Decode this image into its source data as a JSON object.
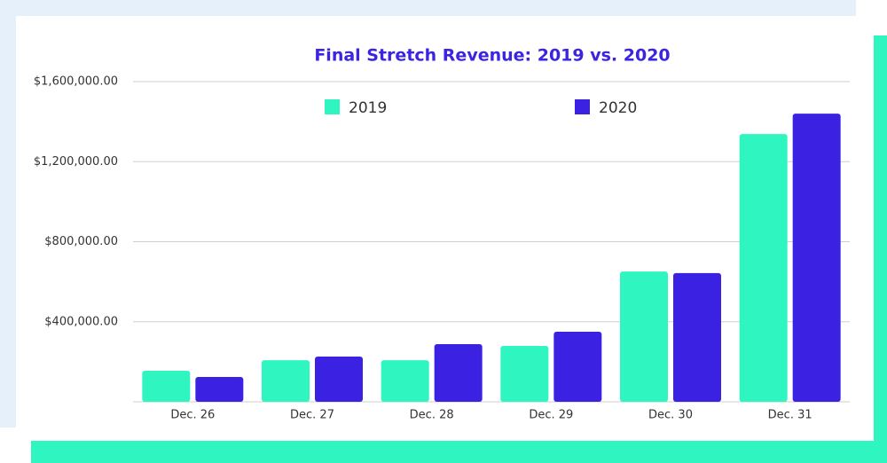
{
  "chart_data": {
    "type": "bar",
    "title": "Final Stretch Revenue: 2019 vs. 2020",
    "categories": [
      "Dec. 26",
      "Dec. 27",
      "Dec. 28",
      "Dec. 29",
      "Dec. 30",
      "Dec. 31"
    ],
    "series": [
      {
        "name": "2019",
        "color": "#2ff5c0",
        "values": [
          155000,
          208000,
          208000,
          279000,
          651000,
          1338000
        ]
      },
      {
        "name": "2020",
        "color": "#3b22e2",
        "values": [
          124000,
          226000,
          288000,
          350000,
          643000,
          1440000
        ]
      }
    ],
    "ylim": [
      0,
      1600000
    ],
    "yticks": [
      {
        "value": 400000,
        "label": "$400,000.00"
      },
      {
        "value": 800000,
        "label": "$800,000.00"
      },
      {
        "value": 1200000,
        "label": "$1,200,000.00"
      },
      {
        "value": 1600000,
        "label": "$1,600,000.00"
      }
    ],
    "grid": true,
    "legend": "top"
  }
}
